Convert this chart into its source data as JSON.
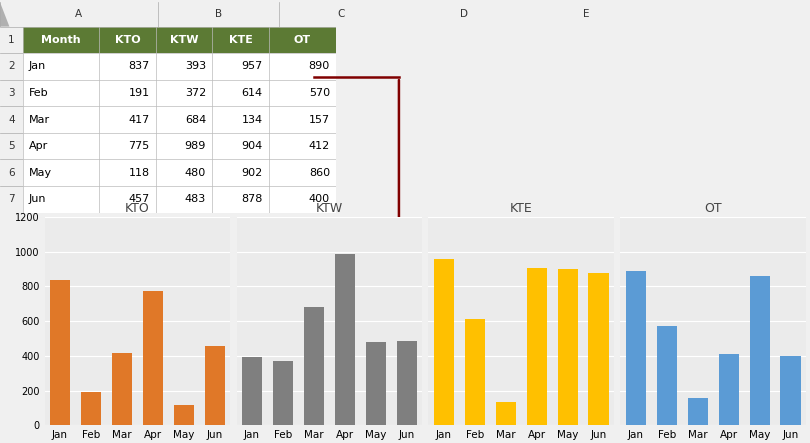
{
  "months": [
    "Jan",
    "Feb",
    "Mar",
    "Apr",
    "May",
    "Jun"
  ],
  "KTO": [
    837,
    191,
    417,
    775,
    118,
    457
  ],
  "KTW": [
    393,
    372,
    684,
    989,
    480,
    483
  ],
  "KTE": [
    957,
    614,
    134,
    904,
    902,
    878
  ],
  "OT": [
    890,
    570,
    157,
    412,
    860,
    400
  ],
  "colors": {
    "KTO": "#E07828",
    "KTW": "#7F7F7F",
    "KTE": "#FFC000",
    "OT": "#5B9BD5"
  },
  "ylim": [
    0,
    1200
  ],
  "yticks": [
    0,
    200,
    400,
    600,
    800,
    1000,
    1200
  ],
  "series_labels": [
    "KTO",
    "KTW",
    "KTE",
    "OT"
  ],
  "fig_bg": "#C8C8C8",
  "excel_bg": "#F0F0F0",
  "plot_bg": "#EBEBEB",
  "spreadsheet_bg": "#FFFFFF",
  "header_color": "#5C7A34",
  "header_text": "#FFFFFF",
  "grid_color": "#FFFFFF",
  "arrow_color": "#800000",
  "col_header_bg": "#D4D4D4",
  "row_header_bg": "#D4D4D4",
  "table_headers": [
    "Month",
    "KTO",
    "KTW",
    "KTE",
    "OT"
  ],
  "col_letters": [
    "A",
    "B",
    "C",
    "D",
    "E"
  ],
  "row_numbers": [
    "1",
    "2",
    "3",
    "4",
    "5",
    "6",
    "7"
  ],
  "table_data": [
    [
      "Jan",
      837,
      393,
      957,
      890
    ],
    [
      "Feb",
      191,
      372,
      614,
      570
    ],
    [
      "Mar",
      417,
      684,
      134,
      157
    ],
    [
      "Apr",
      775,
      989,
      904,
      412
    ],
    [
      "May",
      118,
      480,
      902,
      860
    ],
    [
      "Jun",
      457,
      483,
      878,
      400
    ]
  ]
}
